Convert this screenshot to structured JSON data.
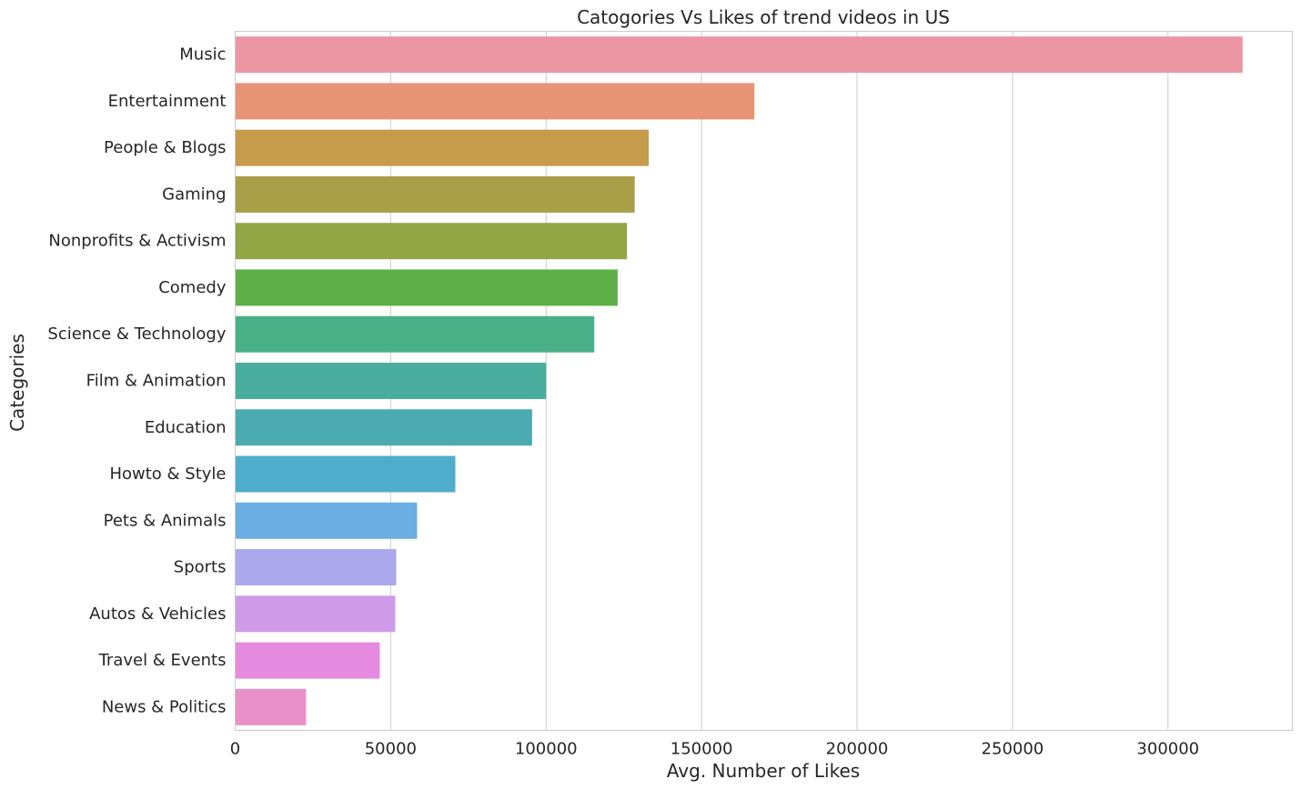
{
  "chart_data": {
    "type": "bar",
    "orientation": "horizontal",
    "title": "Catogories Vs Likes of trend videos in US",
    "xlabel": "Avg. Number of Likes",
    "ylabel": "Categories",
    "xlim": [
      0,
      340000
    ],
    "xticks": [
      0,
      50000,
      100000,
      150000,
      200000,
      250000,
      300000
    ],
    "grid": true,
    "categories": [
      "Music",
      "Entertainment",
      "People & Blogs",
      "Gaming",
      "Nonprofits & Activism",
      "Comedy",
      "Science & Technology",
      "Film & Animation",
      "Education",
      "Howto & Style",
      "Pets & Animals",
      "Sports",
      "Autos & Vehicles",
      "Travel & Events",
      "News & Politics"
    ],
    "values": [
      324000,
      167000,
      133000,
      128500,
      126000,
      123000,
      115500,
      100000,
      95500,
      70800,
      58500,
      51800,
      51500,
      46500,
      22800
    ],
    "colors": [
      "#ec96a4",
      "#e69474",
      "#c69b4c",
      "#aa9f49",
      "#92a645",
      "#5faf49",
      "#4ab088",
      "#4aae9e",
      "#4cabb1",
      "#4fadcb",
      "#6aaee3",
      "#aba8ec",
      "#cf9be9",
      "#e68adf",
      "#e990c8"
    ]
  }
}
